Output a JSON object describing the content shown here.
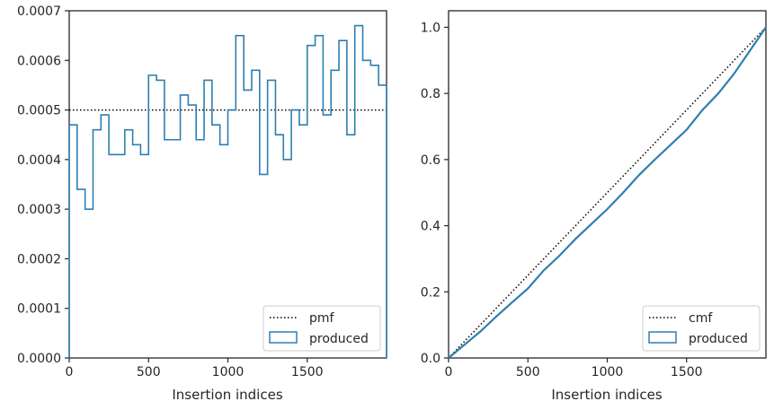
{
  "chart_data": [
    {
      "type": "step",
      "xlabel": "Insertion indices",
      "xlim": [
        0,
        2000
      ],
      "ylim": [
        0,
        0.0007
      ],
      "xticks": [
        0,
        500,
        1000,
        1500
      ],
      "xtick_labels": [
        "0",
        "500",
        "1000",
        "1500"
      ],
      "yticks": [
        0,
        0.0001,
        0.0002,
        0.0003,
        0.0004,
        0.0005,
        0.0006,
        0.0007
      ],
      "ytick_labels": [
        "0.0000",
        "0.0001",
        "0.0002",
        "0.0003",
        "0.0004",
        "0.0005",
        "0.0006",
        "0.0007"
      ],
      "legend_position": "lower-right",
      "series": [
        {
          "name": "pmf",
          "kind": "hline",
          "y": 0.0005,
          "color": "#000000",
          "style": "dotted"
        },
        {
          "name": "produced",
          "kind": "step-hist",
          "color": "#2e7fb0",
          "bin_width": 50,
          "bin_start": 0,
          "values": [
            0.00047,
            0.00034,
            0.0003,
            0.00046,
            0.00049,
            0.00041,
            0.00041,
            0.00046,
            0.00043,
            0.00041,
            0.00057,
            0.00056,
            0.00044,
            0.00044,
            0.00053,
            0.00051,
            0.00044,
            0.00056,
            0.00047,
            0.00043,
            0.0005,
            0.00065,
            0.00054,
            0.00058,
            0.00037,
            0.00056,
            0.00045,
            0.0004,
            0.0005,
            0.00047,
            0.00063,
            0.00065,
            0.00049,
            0.00058,
            0.00064,
            0.00045,
            0.00067,
            0.0006,
            0.00059,
            0.00055
          ]
        }
      ]
    },
    {
      "type": "line",
      "xlabel": "Insertion indices",
      "xlim": [
        0,
        2000
      ],
      "ylim": [
        0,
        1.05
      ],
      "xticks": [
        0,
        500,
        1000,
        1500
      ],
      "xtick_labels": [
        "0",
        "500",
        "1000",
        "1500"
      ],
      "yticks": [
        0,
        0.2,
        0.4,
        0.6,
        0.8,
        1.0
      ],
      "ytick_labels": [
        "0.0",
        "0.2",
        "0.4",
        "0.6",
        "0.8",
        "1.0"
      ],
      "legend_position": "lower-right",
      "series": [
        {
          "name": "cmf",
          "kind": "line",
          "x": [
            0,
            2000
          ],
          "y": [
            0,
            1.0
          ],
          "color": "#000000",
          "style": "dotted"
        },
        {
          "name": "produced",
          "kind": "line",
          "color": "#2e7fb0",
          "x": [
            0,
            100,
            200,
            300,
            400,
            500,
            600,
            700,
            800,
            900,
            1000,
            1100,
            1200,
            1300,
            1400,
            1500,
            1600,
            1700,
            1800,
            1900,
            2000
          ],
          "y": [
            0,
            0.04,
            0.08,
            0.125,
            0.168,
            0.21,
            0.265,
            0.31,
            0.36,
            0.405,
            0.45,
            0.5,
            0.553,
            0.6,
            0.645,
            0.69,
            0.75,
            0.8,
            0.86,
            0.93,
            1.0
          ]
        }
      ]
    }
  ]
}
